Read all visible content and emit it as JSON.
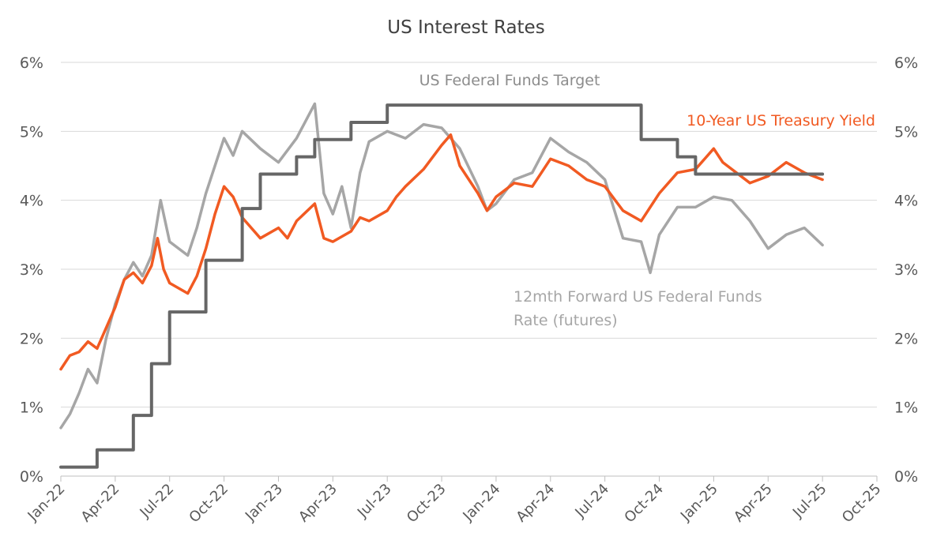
{
  "chart_data": {
    "type": "line",
    "title": "US Interest Rates",
    "y_ticks": [
      "0%",
      "1%",
      "2%",
      "3%",
      "4%",
      "5%",
      "6%"
    ],
    "ylim": [
      0,
      6
    ],
    "x_ticks": [
      "Jan-22",
      "Apr-22",
      "Jul-22",
      "Oct-22",
      "Jan-23",
      "Apr-23",
      "Jul-23",
      "Oct-23",
      "Jan-24",
      "Apr-24",
      "Jul-24",
      "Oct-24",
      "Jan-25",
      "Apr-25",
      "Jul-25",
      "Oct-25"
    ],
    "xlim": [
      "2022-01",
      "2025-10"
    ],
    "grid": "horizontal",
    "dual_y_axis": true,
    "annotations": {
      "fed_target": "US Federal Funds Target",
      "treasury": "10-Year US Treasury Yield",
      "forward_line1": "12mth Forward US Federal Funds",
      "forward_line2": "Rate (futures)"
    },
    "series": [
      {
        "name": "US Federal Funds Target",
        "color": "#666666",
        "step": true,
        "points": [
          [
            "2022-01",
            0.13
          ],
          [
            "2022-03",
            0.38
          ],
          [
            "2022-05",
            0.88
          ],
          [
            "2022-06",
            1.63
          ],
          [
            "2022-07",
            2.38
          ],
          [
            "2022-09",
            3.13
          ],
          [
            "2022-11",
            3.88
          ],
          [
            "2022-12",
            4.38
          ],
          [
            "2023-02",
            4.63
          ],
          [
            "2023-03",
            4.88
          ],
          [
            "2023-05",
            5.13
          ],
          [
            "2023-07",
            5.38
          ],
          [
            "2024-09",
            4.88
          ],
          [
            "2024-11",
            4.63
          ],
          [
            "2024-12",
            4.38
          ],
          [
            "2025-07",
            4.38
          ]
        ]
      },
      {
        "name": "10-Year US Treasury Yield",
        "color": "#f15a22",
        "points": [
          [
            "2022-01",
            1.55
          ],
          [
            "2022-01",
            1.75
          ],
          [
            "2022-02",
            1.8
          ],
          [
            "2022-02",
            1.95
          ],
          [
            "2022-03",
            1.85
          ],
          [
            "2022-03",
            2.15
          ],
          [
            "2022-04",
            2.45
          ],
          [
            "2022-04",
            2.85
          ],
          [
            "2022-05",
            2.95
          ],
          [
            "2022-05",
            2.8
          ],
          [
            "2022-06",
            3.05
          ],
          [
            "2022-06",
            3.45
          ],
          [
            "2022-06",
            3.0
          ],
          [
            "2022-07",
            2.8
          ],
          [
            "2022-08",
            2.65
          ],
          [
            "2022-08",
            2.9
          ],
          [
            "2022-09",
            3.3
          ],
          [
            "2022-09",
            3.8
          ],
          [
            "2022-10",
            4.2
          ],
          [
            "2022-10",
            4.05
          ],
          [
            "2022-11",
            3.75
          ],
          [
            "2022-12",
            3.45
          ],
          [
            "2023-01",
            3.6
          ],
          [
            "2023-01",
            3.45
          ],
          [
            "2023-02",
            3.7
          ],
          [
            "2023-03",
            3.95
          ],
          [
            "2023-03",
            3.45
          ],
          [
            "2023-04",
            3.4
          ],
          [
            "2023-05",
            3.55
          ],
          [
            "2023-05",
            3.75
          ],
          [
            "2023-06",
            3.7
          ],
          [
            "2023-07",
            3.85
          ],
          [
            "2023-07",
            4.05
          ],
          [
            "2023-08",
            4.2
          ],
          [
            "2023-09",
            4.45
          ],
          [
            "2023-10",
            4.8
          ],
          [
            "2023-10",
            4.95
          ],
          [
            "2023-11",
            4.5
          ],
          [
            "2023-12",
            4.1
          ],
          [
            "2023-12",
            3.85
          ],
          [
            "2024-01",
            4.05
          ],
          [
            "2024-02",
            4.25
          ],
          [
            "2024-03",
            4.2
          ],
          [
            "2024-04",
            4.6
          ],
          [
            "2024-05",
            4.5
          ],
          [
            "2024-06",
            4.3
          ],
          [
            "2024-07",
            4.2
          ],
          [
            "2024-08",
            3.85
          ],
          [
            "2024-09",
            3.7
          ],
          [
            "2024-10",
            4.1
          ],
          [
            "2024-11",
            4.4
          ],
          [
            "2024-12",
            4.45
          ],
          [
            "2025-01",
            4.75
          ],
          [
            "2025-01",
            4.55
          ],
          [
            "2025-02",
            4.45
          ],
          [
            "2025-03",
            4.25
          ],
          [
            "2025-04",
            4.35
          ],
          [
            "2025-05",
            4.55
          ],
          [
            "2025-06",
            4.4
          ],
          [
            "2025-07",
            4.3
          ]
        ]
      },
      {
        "name": "12mth Forward US Federal Funds Rate (futures)",
        "color": "#a6a6a6",
        "points": [
          [
            "2022-01",
            0.7
          ],
          [
            "2022-01",
            0.9
          ],
          [
            "2022-02",
            1.2
          ],
          [
            "2022-02",
            1.55
          ],
          [
            "2022-03",
            1.35
          ],
          [
            "2022-03",
            2.0
          ],
          [
            "2022-04",
            2.5
          ],
          [
            "2022-04",
            2.85
          ],
          [
            "2022-05",
            3.1
          ],
          [
            "2022-05",
            2.9
          ],
          [
            "2022-06",
            3.2
          ],
          [
            "2022-06",
            4.0
          ],
          [
            "2022-07",
            3.4
          ],
          [
            "2022-08",
            3.2
          ],
          [
            "2022-08",
            3.6
          ],
          [
            "2022-09",
            4.1
          ],
          [
            "2022-10",
            4.9
          ],
          [
            "2022-10",
            4.65
          ],
          [
            "2022-11",
            5.0
          ],
          [
            "2022-12",
            4.75
          ],
          [
            "2023-01",
            4.55
          ],
          [
            "2023-02",
            4.9
          ],
          [
            "2023-03",
            5.4
          ],
          [
            "2023-03",
            4.1
          ],
          [
            "2023-04",
            3.8
          ],
          [
            "2023-04",
            4.2
          ],
          [
            "2023-05",
            3.6
          ],
          [
            "2023-05",
            4.4
          ],
          [
            "2023-06",
            4.85
          ],
          [
            "2023-07",
            5.0
          ],
          [
            "2023-08",
            4.9
          ],
          [
            "2023-09",
            5.1
          ],
          [
            "2023-10",
            5.05
          ],
          [
            "2023-11",
            4.75
          ],
          [
            "2023-12",
            4.2
          ],
          [
            "2023-12",
            3.85
          ],
          [
            "2024-01",
            3.95
          ],
          [
            "2024-02",
            4.3
          ],
          [
            "2024-03",
            4.4
          ],
          [
            "2024-04",
            4.9
          ],
          [
            "2024-05",
            4.7
          ],
          [
            "2024-06",
            4.55
          ],
          [
            "2024-07",
            4.3
          ],
          [
            "2024-08",
            3.45
          ],
          [
            "2024-09",
            3.4
          ],
          [
            "2024-09",
            2.95
          ],
          [
            "2024-10",
            3.5
          ],
          [
            "2024-11",
            3.9
          ],
          [
            "2024-12",
            3.9
          ],
          [
            "2025-01",
            4.05
          ],
          [
            "2025-02",
            4.0
          ],
          [
            "2025-03",
            3.7
          ],
          [
            "2025-04",
            3.3
          ],
          [
            "2025-05",
            3.5
          ],
          [
            "2025-06",
            3.6
          ],
          [
            "2025-07",
            3.35
          ]
        ]
      }
    ]
  }
}
